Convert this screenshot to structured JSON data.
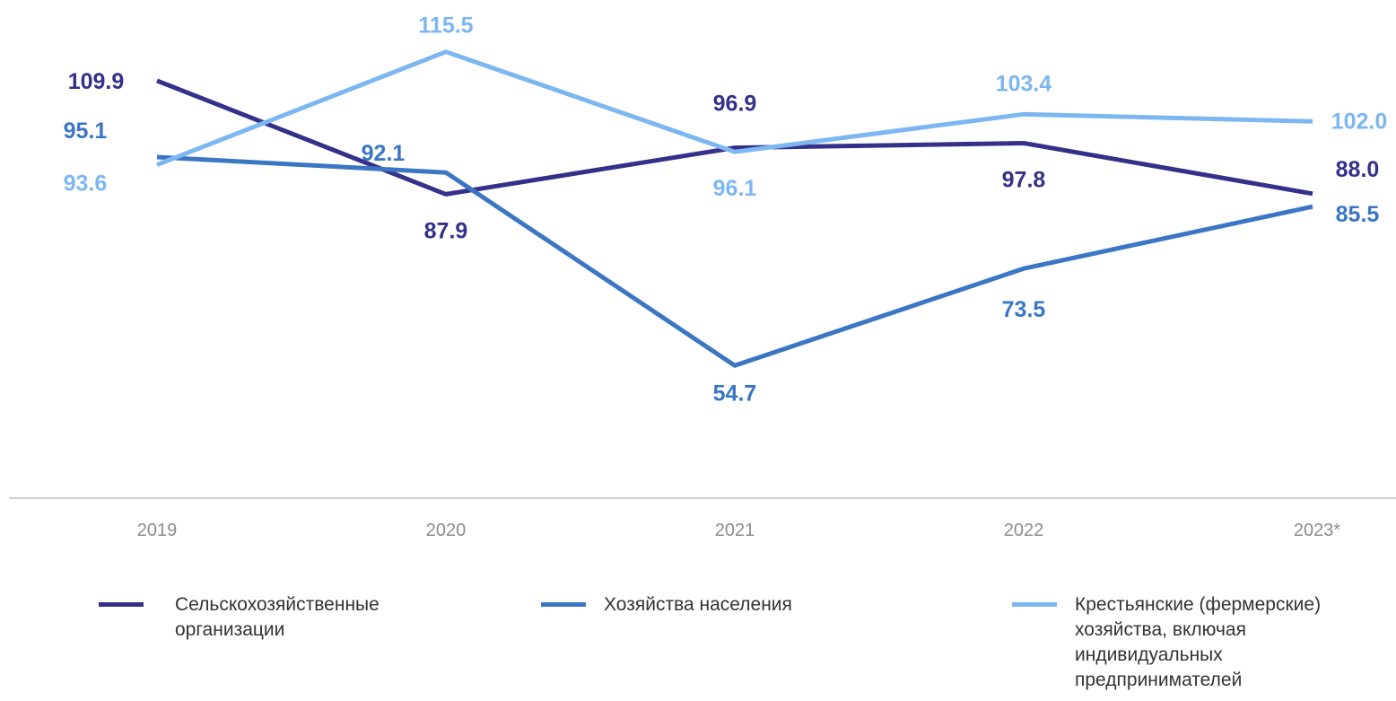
{
  "chart_data": {
    "type": "line",
    "categories": [
      "2019",
      "2020",
      "2021",
      "2022",
      "2023*"
    ],
    "series": [
      {
        "name": "Сельскохозяйственные организации",
        "values": [
          109.9,
          87.9,
          96.9,
          97.8,
          88.0
        ],
        "labels": [
          "109.9",
          "87.9",
          "96.9",
          "97.8",
          "88.0"
        ],
        "color": "#35308a"
      },
      {
        "name": "Хозяйства населения",
        "values": [
          95.1,
          92.1,
          54.7,
          73.5,
          85.5
        ],
        "labels": [
          "95.1",
          "92.1",
          "54.7",
          "73.5",
          "85.5"
        ],
        "color": "#3b76c4"
      },
      {
        "name": "Крестьянские (фермерские) хозяйства, включая индивидуальных предпринимателей",
        "values": [
          93.6,
          115.5,
          96.1,
          103.4,
          102.0
        ],
        "labels": [
          "93.6",
          "115.5",
          "96.1",
          "103.4",
          "102.0"
        ],
        "color": "#7db7f2"
      }
    ],
    "grid": false,
    "legend_position": "bottom"
  },
  "legend": {
    "items": [
      {
        "line1": "Сельскохозяйственные",
        "line2": "организации"
      },
      {
        "line1": "Хозяйства населения"
      },
      {
        "line1": "Крестьянские (фермерские)",
        "line2": "хозяйства, включая",
        "line3": "индивидуальных",
        "line4": "предпринимателей"
      }
    ]
  }
}
